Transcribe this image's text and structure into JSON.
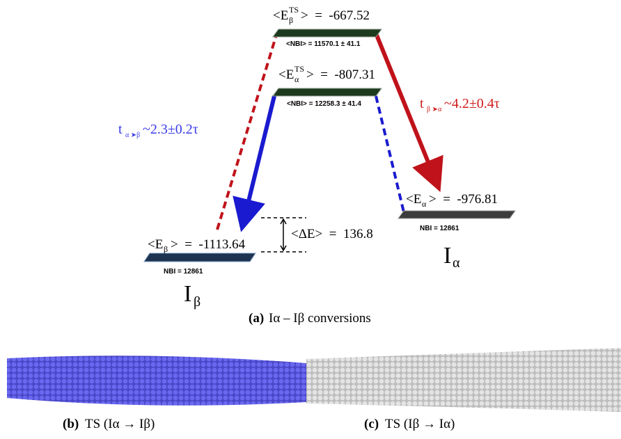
{
  "levels": [
    {
      "open": "<E",
      "sub": "β",
      "sup": "TS",
      "close": ">  =  -667.52",
      "nbi": "<NBI> = 11570.1 ± 41.1"
    },
    {
      "open": "<E",
      "sub": "α",
      "sup": "TS",
      "close": ">  =  -807.31",
      "nbi": "<NBI> = 12258.3 ± 41.4"
    },
    {
      "open": "<E",
      "sub": "α",
      "close": ">  =  -976.81",
      "nbi": "NBI = 12861"
    },
    {
      "open": "<E",
      "sub": "β",
      "close": ">  =  -1113.64",
      "nbi": "NBI = 12861"
    }
  ],
  "states": [
    {
      "letter": "I",
      "sub": "α"
    },
    {
      "letter": "I",
      "sub": "β"
    }
  ],
  "delta": "<ΔE>  =  136.8",
  "rates": [
    {
      "t": "t",
      "sub": "α ➤β",
      "value": "~2.3±0.2τ"
    },
    {
      "t": "t",
      "sub": "β ➤α",
      "value": "~4.2±0.4τ"
    }
  ],
  "captions": [
    {
      "tag": "(a)",
      "text": "Iα – Iβ conversions"
    },
    {
      "tag": "(b)",
      "text": "TS (Iα → Iβ)"
    },
    {
      "tag": "(c)",
      "text": "TS (Iβ → Iα)"
    }
  ]
}
